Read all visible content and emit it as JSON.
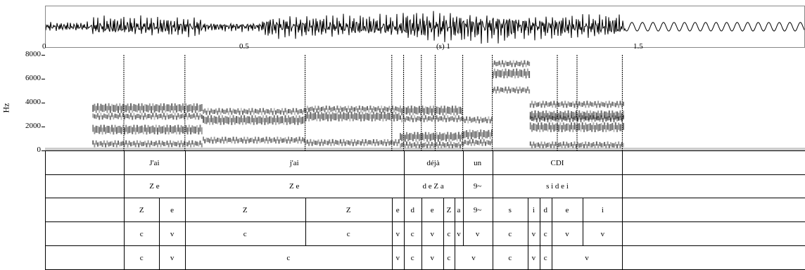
{
  "axis": {
    "time_ticks": [
      {
        "t": 0,
        "label": "0"
      },
      {
        "t": 0.5,
        "label": "0.5"
      },
      {
        "t": 1.0,
        "label": "(s) 1"
      },
      {
        "t": 1.5,
        "label": "1.5"
      }
    ],
    "duration_s": 1.93,
    "freq_ticks": [
      "8000",
      "6000",
      "4000",
      "2000",
      "0"
    ],
    "freq_max": 8000,
    "freq_label": "Hz"
  },
  "boundaries_s": [
    0.2,
    0.355,
    0.66,
    0.88,
    0.91,
    0.955,
    0.99,
    1.06,
    1.135,
    1.3,
    1.35,
    1.465
  ],
  "tiers": [
    {
      "name": "words",
      "intervals": [
        {
          "start": 0.2,
          "end": 0.355,
          "label": "J'ai"
        },
        {
          "start": 0.355,
          "end": 0.91,
          "label": "j'ai"
        },
        {
          "start": 0.91,
          "end": 1.06,
          "label": "déjà"
        },
        {
          "start": 1.06,
          "end": 1.135,
          "label": "un"
        },
        {
          "start": 1.135,
          "end": 1.465,
          "label": "CDI"
        }
      ]
    },
    {
      "name": "syllables",
      "intervals": [
        {
          "start": 0.2,
          "end": 0.355,
          "label": "Z e"
        },
        {
          "start": 0.355,
          "end": 0.91,
          "label": "Z e"
        },
        {
          "start": 0.91,
          "end": 1.06,
          "label": "d e Z a"
        },
        {
          "start": 1.06,
          "end": 1.135,
          "label": "9~"
        },
        {
          "start": 1.135,
          "end": 1.465,
          "label": "s i d e i"
        }
      ]
    },
    {
      "name": "phones",
      "intervals": [
        {
          "start": 0.2,
          "end": 0.29,
          "label": "Z"
        },
        {
          "start": 0.29,
          "end": 0.355,
          "label": "e"
        },
        {
          "start": 0.355,
          "end": 0.66,
          "label": "Z"
        },
        {
          "start": 0.66,
          "end": 0.88,
          "label": "Z"
        },
        {
          "start": 0.88,
          "end": 0.91,
          "label": "e"
        },
        {
          "start": 0.91,
          "end": 0.955,
          "label": "d"
        },
        {
          "start": 0.955,
          "end": 1.01,
          "label": "e"
        },
        {
          "start": 1.01,
          "end": 1.04,
          "label": "Z"
        },
        {
          "start": 1.04,
          "end": 1.06,
          "label": "a"
        },
        {
          "start": 1.06,
          "end": 1.135,
          "label": "9~"
        },
        {
          "start": 1.135,
          "end": 1.225,
          "label": "s"
        },
        {
          "start": 1.225,
          "end": 1.255,
          "label": "i"
        },
        {
          "start": 1.255,
          "end": 1.285,
          "label": "d"
        },
        {
          "start": 1.285,
          "end": 1.365,
          "label": "e"
        },
        {
          "start": 1.365,
          "end": 1.465,
          "label": "i"
        }
      ]
    },
    {
      "name": "cv",
      "intervals": [
        {
          "start": 0.2,
          "end": 0.29,
          "label": "c"
        },
        {
          "start": 0.29,
          "end": 0.355,
          "label": "v"
        },
        {
          "start": 0.355,
          "end": 0.66,
          "label": "c"
        },
        {
          "start": 0.66,
          "end": 0.88,
          "label": "c"
        },
        {
          "start": 0.88,
          "end": 0.91,
          "label": "v"
        },
        {
          "start": 0.91,
          "end": 0.955,
          "label": "c"
        },
        {
          "start": 0.955,
          "end": 1.01,
          "label": "v"
        },
        {
          "start": 1.01,
          "end": 1.04,
          "label": "c"
        },
        {
          "start": 1.04,
          "end": 1.06,
          "label": "v"
        },
        {
          "start": 1.06,
          "end": 1.135,
          "label": "v"
        },
        {
          "start": 1.135,
          "end": 1.225,
          "label": "c"
        },
        {
          "start": 1.225,
          "end": 1.255,
          "label": "v"
        },
        {
          "start": 1.255,
          "end": 1.285,
          "label": "c"
        },
        {
          "start": 1.285,
          "end": 1.365,
          "label": "v"
        },
        {
          "start": 1.365,
          "end": 1.465,
          "label": "v"
        }
      ]
    },
    {
      "name": "cv-merged",
      "intervals": [
        {
          "start": 0.2,
          "end": 0.29,
          "label": "c"
        },
        {
          "start": 0.29,
          "end": 0.355,
          "label": "v"
        },
        {
          "start": 0.355,
          "end": 0.88,
          "label": "c"
        },
        {
          "start": 0.88,
          "end": 0.91,
          "label": "v"
        },
        {
          "start": 0.91,
          "end": 0.955,
          "label": "c"
        },
        {
          "start": 0.955,
          "end": 1.01,
          "label": "v"
        },
        {
          "start": 1.01,
          "end": 1.04,
          "label": "c"
        },
        {
          "start": 1.04,
          "end": 1.135,
          "label": "v"
        },
        {
          "start": 1.135,
          "end": 1.225,
          "label": "c"
        },
        {
          "start": 1.225,
          "end": 1.255,
          "label": "v"
        },
        {
          "start": 1.255,
          "end": 1.285,
          "label": "c"
        },
        {
          "start": 1.285,
          "end": 1.465,
          "label": "v"
        }
      ]
    }
  ]
}
